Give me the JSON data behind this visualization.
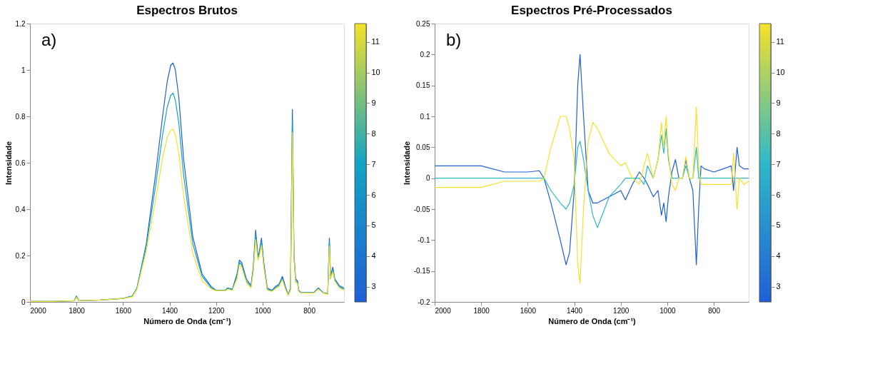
{
  "chart_data": [
    {
      "type": "line",
      "title": "Espectros Brutos",
      "xlabel": "Número de Onda (cm⁻¹)",
      "ylabel": "Intensidade",
      "annotations": [
        "a)"
      ],
      "x": [
        2000,
        1900,
        1810,
        1800,
        1790,
        1700,
        1600,
        1560,
        1540,
        1500,
        1460,
        1430,
        1410,
        1395,
        1385,
        1375,
        1360,
        1340,
        1300,
        1260,
        1220,
        1200,
        1160,
        1150,
        1130,
        1110,
        1100,
        1090,
        1070,
        1050,
        1040,
        1030,
        1020,
        1015,
        1005,
        995,
        980,
        960,
        940,
        930,
        915,
        900,
        890,
        880,
        872,
        865,
        858,
        850,
        845,
        835,
        800,
        780,
        760,
        740,
        720,
        713,
        708,
        698,
        690,
        670,
        650
      ],
      "series": [
        {
          "color": "#1f5fd6",
          "values": [
            0.002,
            0.002,
            0.005,
            0.025,
            0.005,
            0.008,
            0.015,
            0.025,
            0.06,
            0.25,
            0.55,
            0.8,
            0.95,
            1.02,
            1.03,
            1.0,
            0.88,
            0.62,
            0.28,
            0.12,
            0.065,
            0.05,
            0.05,
            0.06,
            0.055,
            0.12,
            0.18,
            0.17,
            0.1,
            0.07,
            0.15,
            0.31,
            0.2,
            0.21,
            0.275,
            0.17,
            0.06,
            0.05,
            0.07,
            0.075,
            0.11,
            0.06,
            0.03,
            0.06,
            0.83,
            0.2,
            0.1,
            0.09,
            0.05,
            0.04,
            0.04,
            0.04,
            0.06,
            0.04,
            0.035,
            0.275,
            0.11,
            0.15,
            0.1,
            0.07,
            0.06
          ]
        },
        {
          "color": "#12a4c4",
          "values": [
            0.002,
            0.002,
            0.005,
            0.022,
            0.005,
            0.008,
            0.015,
            0.025,
            0.06,
            0.24,
            0.5,
            0.72,
            0.84,
            0.89,
            0.9,
            0.87,
            0.77,
            0.55,
            0.25,
            0.11,
            0.06,
            0.05,
            0.05,
            0.058,
            0.052,
            0.11,
            0.17,
            0.16,
            0.09,
            0.065,
            0.14,
            0.29,
            0.19,
            0.2,
            0.26,
            0.16,
            0.055,
            0.048,
            0.065,
            0.07,
            0.1,
            0.055,
            0.03,
            0.055,
            0.78,
            0.19,
            0.09,
            0.085,
            0.048,
            0.04,
            0.04,
            0.04,
            0.058,
            0.04,
            0.034,
            0.26,
            0.1,
            0.14,
            0.095,
            0.065,
            0.055
          ]
        },
        {
          "color": "#f5e12a",
          "values": [
            0.002,
            0.002,
            0.005,
            0.02,
            0.005,
            0.008,
            0.015,
            0.022,
            0.055,
            0.22,
            0.44,
            0.62,
            0.71,
            0.74,
            0.745,
            0.72,
            0.64,
            0.46,
            0.21,
            0.09,
            0.055,
            0.048,
            0.048,
            0.055,
            0.05,
            0.1,
            0.16,
            0.15,
            0.085,
            0.06,
            0.13,
            0.27,
            0.18,
            0.19,
            0.245,
            0.15,
            0.05,
            0.045,
            0.06,
            0.065,
            0.095,
            0.05,
            0.028,
            0.05,
            0.73,
            0.18,
            0.085,
            0.08,
            0.045,
            0.038,
            0.038,
            0.038,
            0.055,
            0.038,
            0.032,
            0.24,
            0.1,
            0.13,
            0.09,
            0.06,
            0.05
          ]
        }
      ],
      "xlim": [
        2000,
        650
      ],
      "xticks": [
        2000,
        1800,
        1600,
        1400,
        1200,
        1000,
        800
      ],
      "ylim": [
        0,
        1.2
      ],
      "yticks": [
        0,
        0.2,
        0.4,
        0.6,
        0.8,
        1,
        1.2
      ],
      "clim": [
        2.5,
        11.6
      ],
      "cticks": [
        3,
        4,
        5,
        6,
        7,
        8,
        9,
        10,
        11
      ]
    },
    {
      "type": "line",
      "title": "Espectros Pré-Processados",
      "xlabel": "Número de Onda (cm⁻¹)",
      "ylabel": "Intensidade",
      "annotations": [
        "b)"
      ],
      "x": [
        2000,
        1800,
        1700,
        1600,
        1550,
        1530,
        1500,
        1460,
        1435,
        1420,
        1400,
        1385,
        1375,
        1360,
        1340,
        1320,
        1300,
        1250,
        1200,
        1180,
        1150,
        1120,
        1100,
        1085,
        1060,
        1040,
        1025,
        1015,
        1005,
        995,
        980,
        965,
        950,
        935,
        920,
        905,
        890,
        875,
        865,
        855,
        840,
        800,
        760,
        725,
        715,
        700,
        690,
        670,
        650
      ],
      "series": [
        {
          "color": "#1f5fd6",
          "values": [
            0.02,
            0.02,
            0.01,
            0.01,
            0.012,
            0,
            -0.04,
            -0.1,
            -0.14,
            -0.12,
            -0.02,
            0.15,
            0.2,
            0.1,
            -0.02,
            -0.04,
            -0.04,
            -0.03,
            -0.02,
            -0.035,
            -0.01,
            0.01,
            0.0,
            -0.01,
            -0.03,
            -0.02,
            -0.06,
            -0.04,
            -0.07,
            -0.03,
            0.01,
            0.03,
            0.0,
            0.0,
            0.03,
            0.0,
            -0.02,
            -0.14,
            -0.05,
            0.02,
            0.015,
            0.01,
            0.015,
            0.02,
            -0.02,
            0.05,
            0.02,
            0.015,
            0.015
          ]
        },
        {
          "color": "#2fb8c8",
          "values": [
            0.0,
            0.0,
            0.0,
            0.0,
            0.0,
            0,
            -0.02,
            -0.04,
            -0.05,
            -0.04,
            -0.01,
            0.05,
            0.06,
            0.03,
            -0.02,
            -0.06,
            -0.08,
            -0.03,
            -0.01,
            0.0,
            0.0,
            0.0,
            -0.01,
            0.02,
            0.0,
            0.03,
            0.07,
            0.04,
            0.08,
            0.03,
            0.0,
            0.0,
            0.0,
            0.0,
            0.02,
            0.0,
            0.0,
            0.05,
            0.0,
            0.0,
            0.0,
            0.0,
            0.0,
            0.0,
            0.0,
            0.0,
            0.0,
            0.0,
            0.0
          ]
        },
        {
          "color": "#f5e12a",
          "values": [
            -0.015,
            -0.015,
            -0.005,
            -0.005,
            -0.005,
            0,
            0.05,
            0.1,
            0.1,
            0.08,
            0.03,
            -0.14,
            -0.17,
            -0.05,
            0.06,
            0.09,
            0.08,
            0.04,
            0.02,
            0.025,
            0.0,
            -0.01,
            0.02,
            0.04,
            0.0,
            0.03,
            0.09,
            0.05,
            0.1,
            0.04,
            -0.01,
            -0.02,
            0.0,
            0.0,
            0.035,
            0.0,
            0.0,
            0.115,
            0.02,
            -0.01,
            -0.01,
            -0.01,
            -0.01,
            -0.01,
            0.04,
            -0.05,
            0.0,
            -0.01,
            -0.005
          ]
        }
      ],
      "xlim": [
        2000,
        650
      ],
      "xticks": [
        2000,
        1800,
        1600,
        1400,
        1200,
        1000,
        800
      ],
      "ylim": [
        -0.2,
        0.25
      ],
      "yticks": [
        -0.2,
        -0.15,
        -0.1,
        -0.05,
        0,
        0.05,
        0.1,
        0.15,
        0.2,
        0.25
      ],
      "clim": [
        2.5,
        11.6
      ],
      "cticks": [
        3,
        4,
        5,
        6,
        7,
        8,
        9,
        10,
        11
      ]
    }
  ]
}
